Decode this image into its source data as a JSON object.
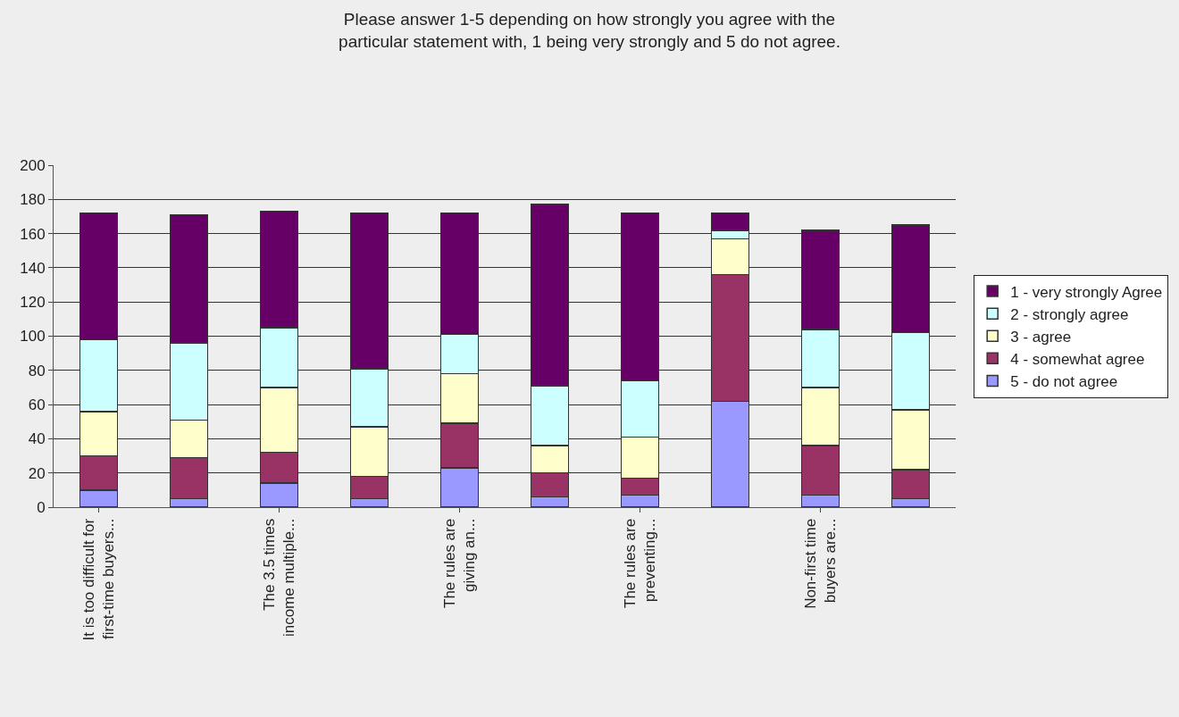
{
  "chart_data": {
    "type": "bar",
    "stacked": true,
    "title": "Please answer 1-5 depending on how strongly you agree with the particular statement with, 1 being very strongly and 5 do not agree.",
    "categories": [
      "It is too difficult for first-time buyers...",
      null,
      "The 3.5 times income multiple...",
      null,
      "The rules are giving an...",
      null,
      "The rules are preventing...",
      null,
      "Non-first time buyers are...",
      null
    ],
    "series": [
      {
        "name": "5 - do not agree",
        "color": "#9999ff",
        "values": [
          10,
          5,
          14,
          5,
          23,
          6,
          7,
          62,
          7,
          5
        ]
      },
      {
        "name": "4 - somewhat agree",
        "color": "#993366",
        "values": [
          20,
          24,
          18,
          13,
          26,
          14,
          10,
          74,
          29,
          17
        ]
      },
      {
        "name": "3 - agree",
        "color": "#ffffcc",
        "values": [
          26,
          22,
          38,
          29,
          29,
          16,
          24,
          21,
          34,
          35
        ]
      },
      {
        "name": "2 - strongly agree",
        "color": "#ccffff",
        "values": [
          42,
          45,
          35,
          34,
          23,
          35,
          33,
          5,
          34,
          45
        ]
      },
      {
        "name": "1 - very strongly Agree",
        "color": "#660066",
        "values": [
          74,
          75,
          68,
          91,
          71,
          106,
          98,
          10,
          58,
          63
        ]
      }
    ],
    "ylim": [
      0,
      200
    ],
    "yticks": [
      0,
      20,
      40,
      60,
      80,
      100,
      120,
      140,
      160,
      180,
      200
    ],
    "grid": "y",
    "legend": "right"
  }
}
